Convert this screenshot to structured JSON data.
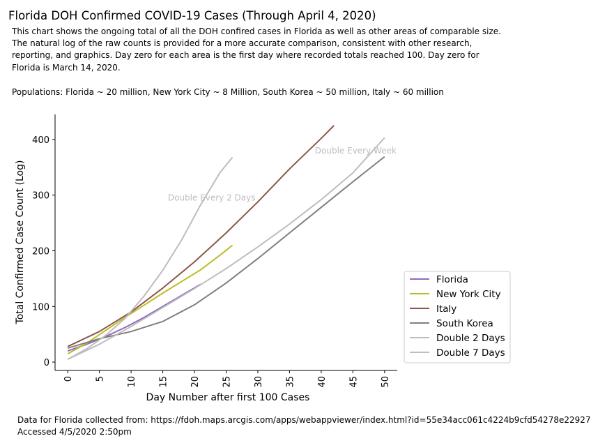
{
  "header": {
    "title": "Florida DOH Confirmed COVID-19 Cases (Through April 4, 2020)",
    "description_lines": [
      "This chart shows the ongoing total of all the DOH confired cases in Florida as well as other areas of comparable size.",
      "The natural log of the raw counts is provided for a more accurate comparison, consistent with other research,",
      "reporting, and graphics.  Day zero for each area is the first day where recorded totals reached 100. Day zero for",
      "Florida is March 14, 2020.",
      "Populations: Florida ~ 20 million, New York City ~ 8 Million, South Korea ~ 50 million, Italy ~ 60 million"
    ]
  },
  "footer": {
    "source": "Data for Florida collected from: https://fdoh.maps.arcgis.com/apps/webappviewer/index.html?id=55e34acc061c4224b9cfd54278e22927",
    "accessed": "Accessed 4/5/2020 2:50pm"
  },
  "chart_data": {
    "type": "line",
    "xlabel": "Day Number after first 100 Cases",
    "ylabel": "Total Confirmed Case Count (Log)",
    "xlim": [
      -2,
      52
    ],
    "ylim": [
      -15,
      445
    ],
    "xticks": [
      0,
      5,
      10,
      15,
      20,
      25,
      30,
      35,
      40,
      45,
      50
    ],
    "yticks": [
      0,
      100,
      200,
      300,
      400
    ],
    "grid": false,
    "legend_position": "lower-right",
    "series": [
      {
        "name": "Florida",
        "color": "#9467bd",
        "x": [
          0,
          3,
          6,
          9,
          12,
          15,
          18,
          21
        ],
        "y": [
          20,
          32,
          46,
          62,
          80,
          100,
          120,
          140
        ]
      },
      {
        "name": "New York City",
        "color": "#bcbd22",
        "x": [
          0,
          3,
          6,
          9,
          12,
          15,
          18,
          21,
          24,
          26
        ],
        "y": [
          15,
          34,
          57,
          80,
          102,
          124,
          145,
          166,
          192,
          210
        ]
      },
      {
        "name": "Italy",
        "color": "#8c564b",
        "x": [
          0,
          5,
          10,
          15,
          20,
          25,
          30,
          35,
          40,
          42
        ],
        "y": [
          28,
          55,
          90,
          133,
          180,
          232,
          288,
          347,
          402,
          425
        ]
      },
      {
        "name": "South Korea",
        "color": "#7f7f7f",
        "x": [
          0,
          5,
          10,
          15,
          20,
          25,
          30,
          35,
          40,
          45,
          50
        ],
        "y": [
          25,
          42,
          55,
          73,
          103,
          142,
          186,
          232,
          278,
          324,
          369
        ]
      },
      {
        "name": "Double 2 Days",
        "color": "#bdbdbd",
        "x": [
          0,
          3,
          6,
          9,
          12,
          15,
          18,
          21,
          24,
          26
        ],
        "y": [
          5,
          24,
          48,
          78,
          118,
          165,
          220,
          283,
          340,
          368
        ]
      },
      {
        "name": "Double 7 Days",
        "color": "#bdbdbd",
        "x": [
          0,
          5,
          10,
          15,
          20,
          25,
          30,
          35,
          40,
          45,
          50
        ],
        "y": [
          5,
          32,
          64,
          98,
          132,
          168,
          207,
          248,
          292,
          340,
          403
        ]
      }
    ],
    "annotations": [
      {
        "text": "Double Every 2 Days",
        "x": 15.8,
        "y": 290
      },
      {
        "text": "Double Every Week",
        "x": 39,
        "y": 375
      }
    ]
  }
}
